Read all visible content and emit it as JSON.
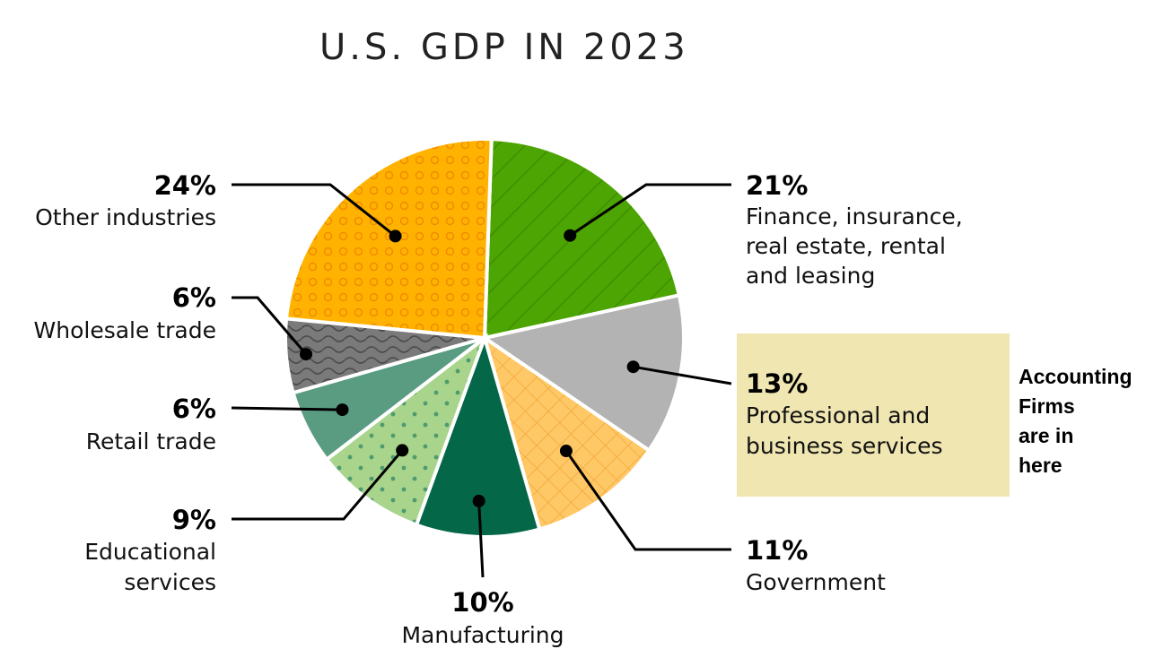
{
  "chart_data": {
    "type": "pie",
    "title": "U.S. GDP IN 2023",
    "slices": [
      {
        "label_lines": [
          "Finance, insurance,",
          "real estate, rental",
          "and leasing"
        ],
        "value": 21,
        "value_label": "21%",
        "color": "#4ca502",
        "pattern": "diagonal-lines"
      },
      {
        "label_lines": [
          "Professional and",
          "business services"
        ],
        "value": 13,
        "value_label": "13%",
        "color": "#b3b3b3",
        "pattern": "solid",
        "highlighted": true
      },
      {
        "label_lines": [
          "Government"
        ],
        "value": 11,
        "value_label": "11%",
        "color": "#ffc866",
        "pattern": "crosshatch"
      },
      {
        "label_lines": [
          "Manufacturing"
        ],
        "value": 10,
        "value_label": "10%",
        "color": "#046747",
        "pattern": "solid"
      },
      {
        "label_lines": [
          "Educational",
          "services"
        ],
        "value": 9,
        "value_label": "9%",
        "color": "#a8d48c",
        "pattern": "dots"
      },
      {
        "label_lines": [
          "Retail trade"
        ],
        "value": 6,
        "value_label": "6%",
        "color": "#5a9c82",
        "pattern": "solid"
      },
      {
        "label_lines": [
          "Wholesale trade"
        ],
        "value": 6,
        "value_label": "6%",
        "color": "#7a7a7a",
        "pattern": "waves"
      },
      {
        "label_lines": [
          "Other industries"
        ],
        "value": 24,
        "value_label": "24%",
        "color": "#ffb300",
        "pattern": "circles"
      }
    ],
    "start_angle_deg": 2,
    "direction": "clockwise",
    "legend": "none"
  },
  "annotation": {
    "text_lines": [
      "Accounting",
      "Firms",
      "are in",
      "here"
    ],
    "highlight_color": "#f0e6b2"
  }
}
